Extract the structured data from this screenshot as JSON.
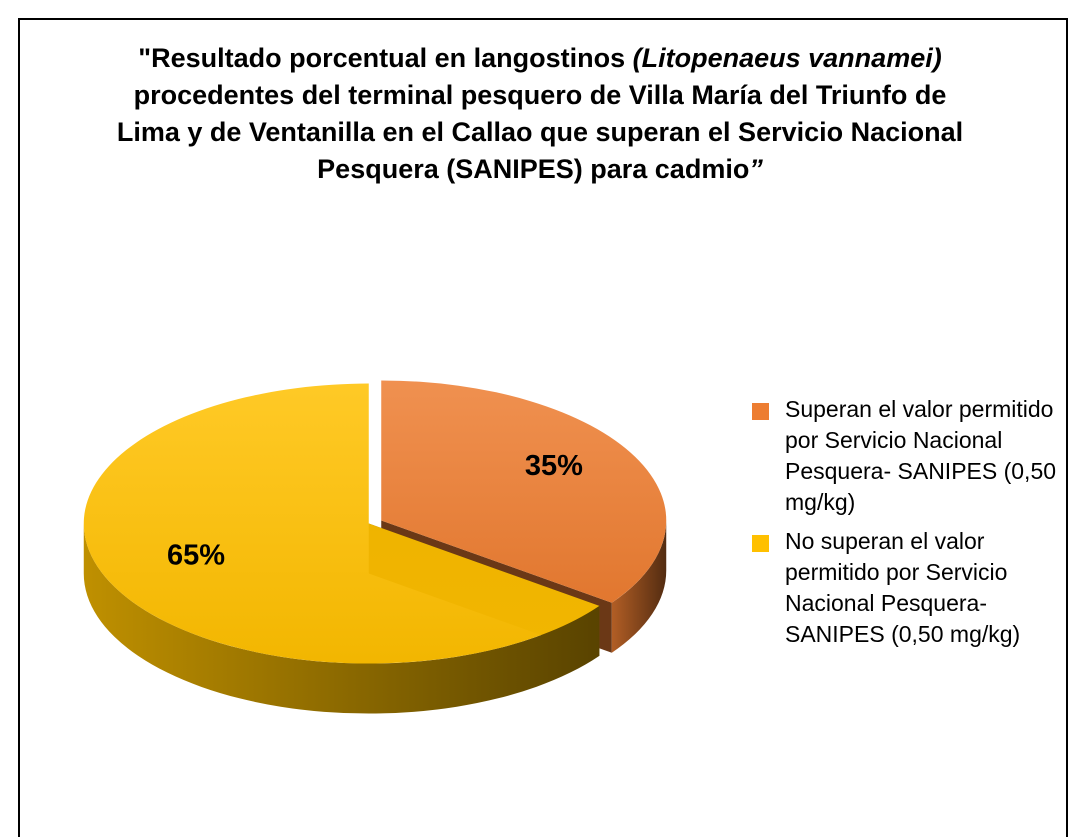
{
  "chart_data": {
    "type": "pie",
    "title": [
      "\"Resultado porcentual en langostinos ",
      "(Litopenaeus vannamei)",
      " procedentes del terminal pesquero de Villa María del Triunfo de Lima  y de Ventanilla en el Callao que superan el Servicio Nacional Pesquera (SANIPES) para cadmio",
      "”"
    ],
    "title_italic": [
      false,
      true,
      false,
      true
    ],
    "categories": [
      "Superan el valor permitido por Servicio Nacional Pesquera- SANIPES  (0,50 mg/kg)",
      "No superan el valor permitido por Servicio Nacional Pesquera- SANIPES  (0,50 mg/kg)"
    ],
    "values": [
      35,
      65
    ],
    "value_labels": [
      "35%",
      "65%"
    ],
    "colors": [
      "#ed7d31",
      "#ffc000"
    ],
    "legend": "right"
  }
}
